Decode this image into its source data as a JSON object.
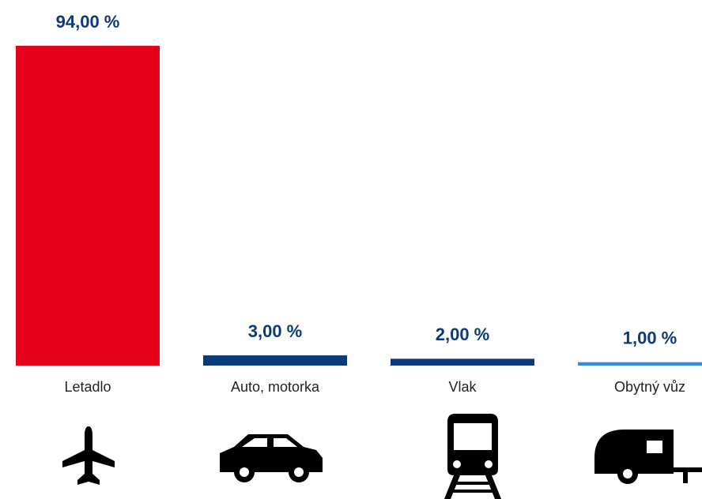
{
  "chart_data": {
    "type": "bar",
    "categories": [
      "Letadlo",
      "Auto, motorka",
      "Vlak",
      "Obytný vůz"
    ],
    "values": [
      94,
      3,
      2,
      1
    ],
    "value_labels": [
      "94,00 %",
      "3,00 %",
      "2,00 %",
      "1,00 %"
    ],
    "colors": [
      "#e2001a",
      "#0b3a78",
      "#0b3a78",
      "#2e8fe0"
    ]
  }
}
